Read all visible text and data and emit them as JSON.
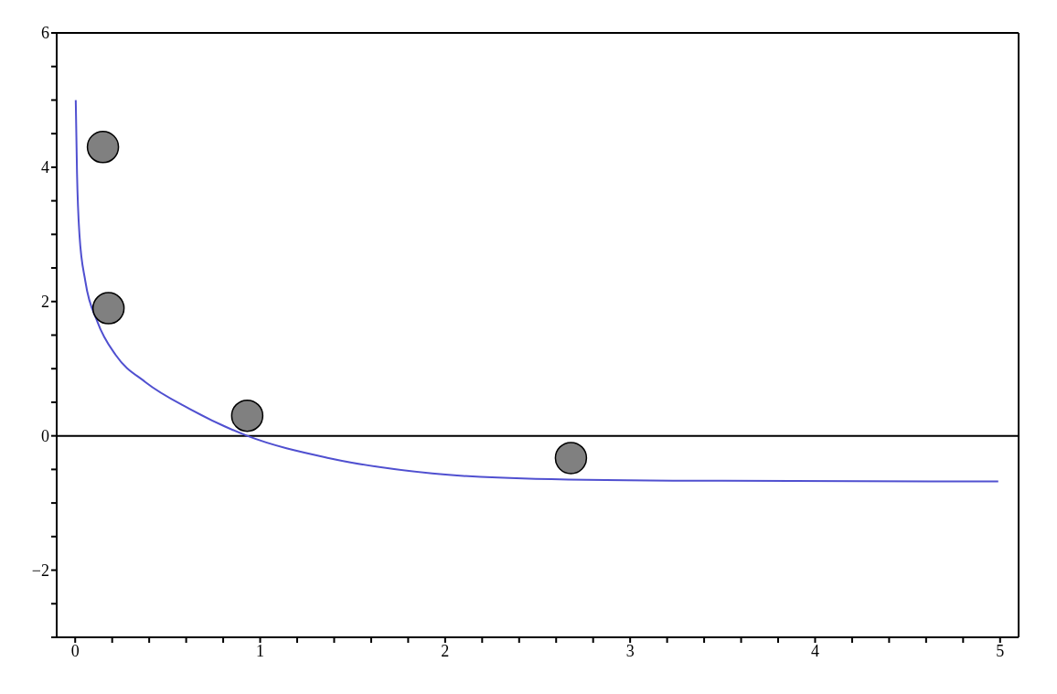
{
  "chart_data": {
    "type": "line",
    "xlim": [
      -0.1,
      5.1
    ],
    "ylim": [
      -3,
      6
    ],
    "xticks": [
      0,
      {
        "value": 0.2,
        "label": null
      },
      {
        "value": 0.4,
        "label": null
      },
      {
        "value": 0.6,
        "label": null
      },
      {
        "value": 0.8,
        "label": null
      },
      1,
      {
        "value": 1.2,
        "label": null
      },
      {
        "value": 1.4,
        "label": null
      },
      {
        "value": 1.6,
        "label": null
      },
      {
        "value": 1.8,
        "label": null
      },
      2,
      {
        "value": 2.2,
        "label": null
      },
      {
        "value": 2.4,
        "label": null
      },
      {
        "value": 2.6,
        "label": null
      },
      {
        "value": 2.8,
        "label": null
      },
      3,
      {
        "value": 3.2,
        "label": null
      },
      {
        "value": 3.4,
        "label": null
      },
      {
        "value": 3.6,
        "label": null
      },
      {
        "value": 3.8,
        "label": null
      },
      4,
      {
        "value": 4.2,
        "label": null
      },
      {
        "value": 4.4,
        "label": null
      },
      {
        "value": 4.6,
        "label": null
      },
      {
        "value": 4.8,
        "label": null
      },
      5
    ],
    "yticks": [
      {
        "value": -3,
        "label": null
      },
      {
        "value": -2.5,
        "label": null
      },
      -2,
      {
        "value": -1.5,
        "label": null
      },
      {
        "value": -1,
        "label": null
      },
      {
        "value": -0.5,
        "label": null
      },
      0,
      {
        "value": 0.5,
        "label": null
      },
      {
        "value": 1,
        "label": null
      },
      {
        "value": 1.5,
        "label": null
      },
      2,
      {
        "value": 2.5,
        "label": null
      },
      {
        "value": 3,
        "label": null
      },
      {
        "value": 3.5,
        "label": null
      },
      4,
      {
        "value": 4.5,
        "label": null
      },
      {
        "value": 5,
        "label": null
      },
      {
        "value": 5.5,
        "label": null
      },
      6
    ],
    "ref_lines": [
      {
        "axis": "y",
        "value": 0,
        "color": "#000000"
      }
    ],
    "series": [
      {
        "color": "#5050d0",
        "marker": "none",
        "x": [
          0.003,
          0.01,
          0.023,
          0.055,
          0.12,
          0.22,
          0.38,
          0.62,
          0.93,
          1.37,
          1.93,
          2.49,
          3.5,
          4.99
        ],
        "values": [
          5.0,
          3.9,
          3.0,
          2.3,
          1.7,
          1.2,
          0.8,
          0.4,
          0,
          -0.33,
          -0.56,
          -0.64,
          -0.67,
          -0.68
        ]
      },
      {
        "type": "scatter",
        "color": "#808080",
        "marker": "circle",
        "x": [
          0.15,
          0.18,
          0.93,
          2.68
        ],
        "values": [
          4.3,
          1.9,
          0.3,
          -0.33
        ]
      }
    ]
  }
}
